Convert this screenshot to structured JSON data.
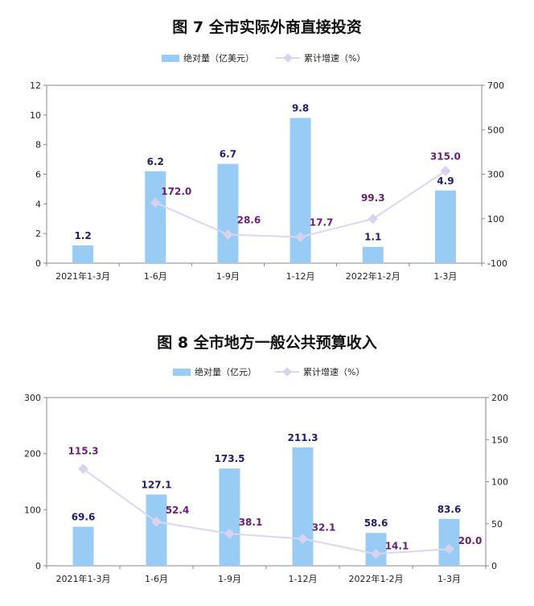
{
  "colors": {
    "bar": "#99CCF5",
    "line": "#DCD6F2",
    "marker": "#D8D2EE",
    "bar_label": "#1F1F6B",
    "line_label": "#6B1F74"
  },
  "chart_data": [
    {
      "type": "bar",
      "title": "图 7    全市实际外商直接投资",
      "legend": {
        "bar": "绝对量（亿美元）",
        "line": "累计增速（%）",
        "placement": "top-center"
      },
      "categories": [
        "2021年1-3月",
        "1-6月",
        "1-9月",
        "1-12月",
        "2022年1-2月",
        "1-3月"
      ],
      "series": [
        {
          "name": "绝对量（亿美元）",
          "type": "bar",
          "axis": "left",
          "values": [
            1.2,
            6.2,
            6.7,
            9.8,
            1.1,
            4.9
          ],
          "labels": [
            "1.2",
            "6.2",
            "6.7",
            "9.8",
            "1.1",
            "4.9"
          ]
        },
        {
          "name": "累计增速（%）",
          "type": "line",
          "axis": "right",
          "values": [
            null,
            172.0,
            28.6,
            17.7,
            99.3,
            315.0
          ],
          "labels": [
            "",
            "172.0",
            "28.6",
            "17.7",
            "99.3",
            "315.0"
          ]
        }
      ],
      "y_left": {
        "min": 0,
        "max": 12,
        "ticks": [
          0,
          2,
          4,
          6,
          8,
          10,
          12
        ]
      },
      "y_right": {
        "min": -100,
        "max": 700,
        "ticks": [
          -100,
          100,
          300,
          500,
          700
        ]
      },
      "grid": false
    },
    {
      "type": "bar",
      "title": "图 8    全市地方一般公共预算收入",
      "legend": {
        "bar": "绝对量（亿元）",
        "line": "累计增速（%）",
        "placement": "top-center"
      },
      "categories": [
        "2021年1-3月",
        "1-6月",
        "1-9月",
        "1-12月",
        "2022年1-2月",
        "1-3月"
      ],
      "series": [
        {
          "name": "绝对量（亿元）",
          "type": "bar",
          "axis": "left",
          "values": [
            69.6,
            127.1,
            173.5,
            211.3,
            58.6,
            83.6
          ],
          "labels": [
            "69.6",
            "127.1",
            "173.5",
            "211.3",
            "58.6",
            "83.6"
          ]
        },
        {
          "name": "累计增速（%）",
          "type": "line",
          "axis": "right",
          "values": [
            115.3,
            52.4,
            38.1,
            32.1,
            14.1,
            20.0
          ],
          "labels": [
            "115.3",
            "52.4",
            "38.1",
            "32.1",
            "14.1",
            "20.0"
          ]
        }
      ],
      "y_left": {
        "min": 0,
        "max": 300,
        "ticks": [
          0,
          100,
          200,
          300
        ]
      },
      "y_right": {
        "min": 0,
        "max": 200,
        "ticks": [
          0,
          50,
          100,
          150,
          200
        ]
      },
      "grid": false
    }
  ]
}
